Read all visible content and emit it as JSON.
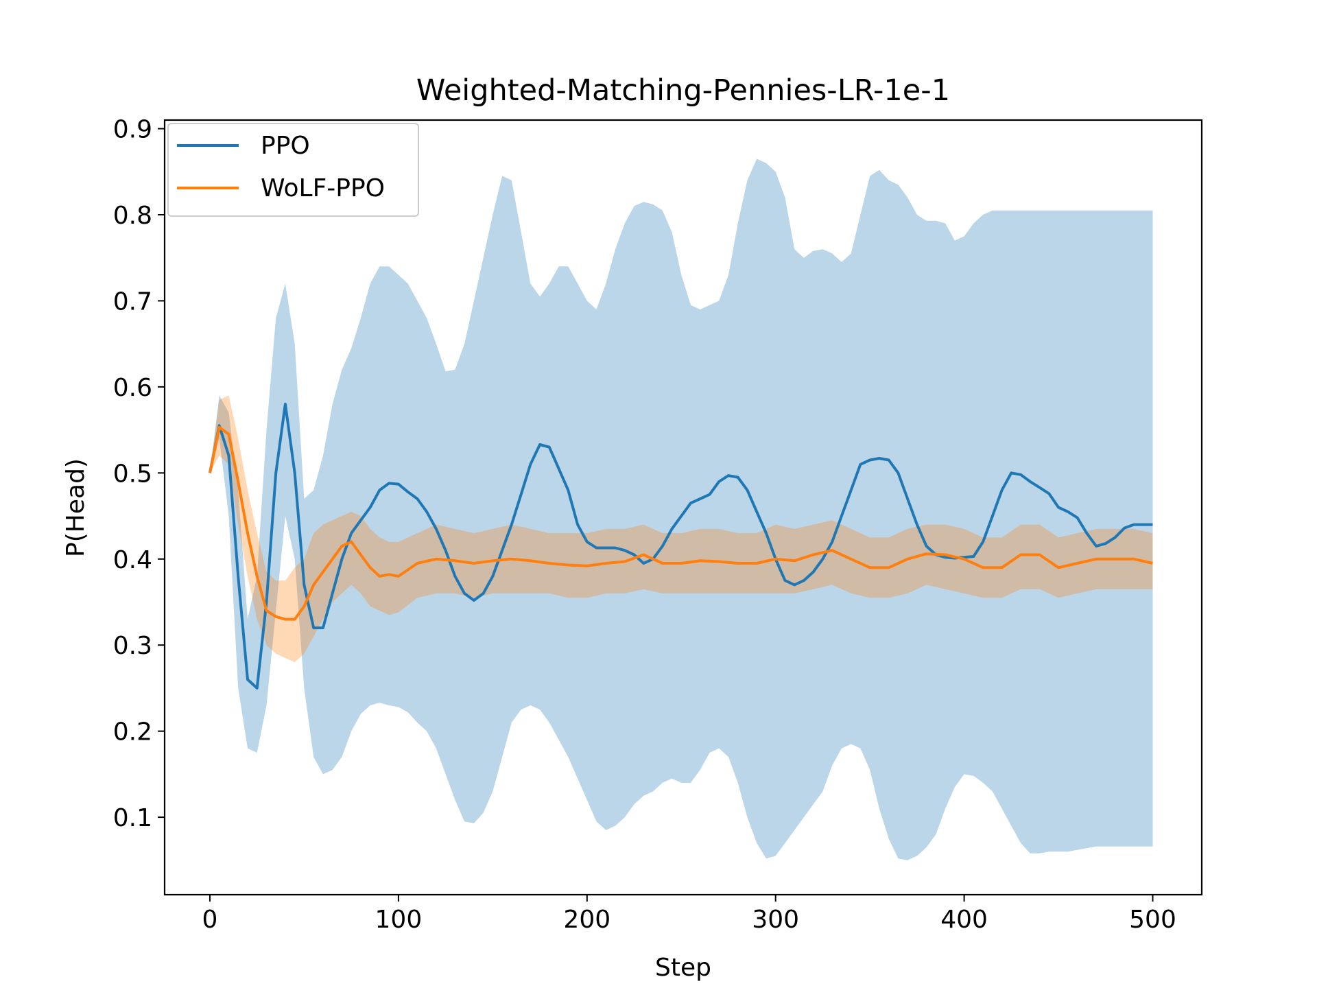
{
  "chart_data": {
    "type": "line",
    "title": "Weighted-Matching-Pennies-LR-1e-1",
    "xlabel": "Step",
    "ylabel": "P(Head)",
    "xlim": [
      -24,
      526
    ],
    "ylim": [
      0.01,
      0.91
    ],
    "x_ticks": [
      0,
      100,
      200,
      300,
      400,
      500
    ],
    "x_tick_labels": [
      "0",
      "100",
      "200",
      "300",
      "400",
      "500"
    ],
    "y_ticks": [
      0.1,
      0.2,
      0.3,
      0.4,
      0.5,
      0.6,
      0.7,
      0.8,
      0.9
    ],
    "y_tick_labels": [
      "0.1",
      "0.2",
      "0.3",
      "0.4",
      "0.5",
      "0.6",
      "0.7",
      "0.8",
      "0.9"
    ],
    "grid": false,
    "legend_position": "top-left",
    "series": [
      {
        "name": "PPO",
        "color": "#1f77b4",
        "band_color": "#1f77b4",
        "band_opacity": 0.3,
        "x": [
          0,
          5,
          10,
          15,
          20,
          25,
          30,
          35,
          40,
          45,
          50,
          55,
          60,
          65,
          70,
          75,
          80,
          85,
          90,
          95,
          100,
          105,
          110,
          115,
          120,
          125,
          130,
          135,
          140,
          145,
          150,
          155,
          160,
          165,
          170,
          175,
          180,
          185,
          190,
          195,
          200,
          205,
          210,
          215,
          220,
          225,
          230,
          235,
          240,
          245,
          250,
          255,
          260,
          265,
          270,
          275,
          280,
          285,
          290,
          295,
          300,
          305,
          310,
          315,
          320,
          325,
          330,
          335,
          340,
          345,
          350,
          355,
          360,
          365,
          370,
          375,
          380,
          385,
          390,
          395,
          400,
          405,
          410,
          415,
          420,
          425,
          430,
          435,
          440,
          445,
          450,
          455,
          460,
          465,
          470,
          475,
          480,
          485,
          490,
          495,
          500
        ],
        "mean": [
          0.5,
          0.555,
          0.52,
          0.38,
          0.26,
          0.25,
          0.35,
          0.5,
          0.58,
          0.5,
          0.37,
          0.32,
          0.32,
          0.36,
          0.4,
          0.43,
          0.445,
          0.46,
          0.48,
          0.488,
          0.487,
          0.478,
          0.47,
          0.455,
          0.435,
          0.41,
          0.38,
          0.36,
          0.352,
          0.36,
          0.38,
          0.41,
          0.44,
          0.475,
          0.51,
          0.533,
          0.53,
          0.505,
          0.48,
          0.44,
          0.42,
          0.413,
          0.413,
          0.413,
          0.41,
          0.405,
          0.395,
          0.4,
          0.415,
          0.435,
          0.45,
          0.465,
          0.47,
          0.475,
          0.49,
          0.497,
          0.495,
          0.48,
          0.455,
          0.43,
          0.4,
          0.375,
          0.37,
          0.375,
          0.385,
          0.4,
          0.42,
          0.45,
          0.48,
          0.51,
          0.515,
          0.517,
          0.515,
          0.5,
          0.47,
          0.44,
          0.415,
          0.405,
          0.402,
          0.401,
          0.402,
          0.403,
          0.42,
          0.45,
          0.48,
          0.5,
          0.498,
          0.49,
          0.483,
          0.476,
          0.46,
          0.455,
          0.448,
          0.43,
          0.415,
          0.418,
          0.425,
          0.436,
          0.44,
          0.44,
          0.44
        ],
        "lower": [
          0.5,
          0.54,
          0.45,
          0.25,
          0.18,
          0.175,
          0.23,
          0.34,
          0.45,
          0.4,
          0.25,
          0.17,
          0.15,
          0.155,
          0.17,
          0.2,
          0.22,
          0.23,
          0.233,
          0.23,
          0.228,
          0.222,
          0.21,
          0.2,
          0.18,
          0.15,
          0.12,
          0.095,
          0.093,
          0.105,
          0.13,
          0.17,
          0.21,
          0.225,
          0.23,
          0.225,
          0.21,
          0.19,
          0.17,
          0.145,
          0.12,
          0.095,
          0.085,
          0.09,
          0.1,
          0.115,
          0.125,
          0.13,
          0.14,
          0.145,
          0.14,
          0.14,
          0.155,
          0.175,
          0.18,
          0.17,
          0.14,
          0.1,
          0.07,
          0.052,
          0.055,
          0.07,
          0.085,
          0.1,
          0.115,
          0.13,
          0.16,
          0.18,
          0.185,
          0.18,
          0.155,
          0.11,
          0.075,
          0.052,
          0.05,
          0.055,
          0.065,
          0.08,
          0.11,
          0.135,
          0.15,
          0.148,
          0.14,
          0.13,
          0.11,
          0.09,
          0.07,
          0.058,
          0.058,
          0.06,
          0.06,
          0.06,
          0.062,
          0.064,
          0.066,
          0.066,
          0.066,
          0.066,
          0.066,
          0.066,
          0.066
        ],
        "upper": [
          0.5,
          0.59,
          0.57,
          0.48,
          0.33,
          0.38,
          0.55,
          0.68,
          0.72,
          0.65,
          0.47,
          0.48,
          0.52,
          0.58,
          0.62,
          0.645,
          0.68,
          0.72,
          0.74,
          0.74,
          0.73,
          0.72,
          0.7,
          0.68,
          0.65,
          0.618,
          0.62,
          0.65,
          0.7,
          0.75,
          0.8,
          0.845,
          0.84,
          0.78,
          0.72,
          0.705,
          0.72,
          0.74,
          0.74,
          0.72,
          0.7,
          0.69,
          0.72,
          0.76,
          0.79,
          0.81,
          0.815,
          0.812,
          0.805,
          0.78,
          0.73,
          0.695,
          0.69,
          0.695,
          0.7,
          0.73,
          0.79,
          0.84,
          0.865,
          0.86,
          0.85,
          0.82,
          0.76,
          0.75,
          0.758,
          0.76,
          0.755,
          0.745,
          0.755,
          0.8,
          0.845,
          0.852,
          0.84,
          0.835,
          0.82,
          0.8,
          0.793,
          0.793,
          0.79,
          0.77,
          0.775,
          0.79,
          0.8,
          0.805,
          0.805,
          0.805,
          0.805,
          0.805,
          0.805,
          0.805,
          0.805,
          0.805,
          0.805,
          0.805,
          0.805,
          0.805,
          0.805,
          0.805,
          0.805,
          0.805,
          0.805
        ]
      },
      {
        "name": "WoLF-PPO",
        "color": "#ff7f0e",
        "band_color": "#ff7f0e",
        "band_opacity": 0.3,
        "x": [
          0,
          5,
          10,
          15,
          20,
          25,
          30,
          35,
          40,
          45,
          50,
          55,
          60,
          65,
          70,
          75,
          80,
          85,
          90,
          95,
          100,
          110,
          120,
          130,
          140,
          150,
          160,
          170,
          180,
          190,
          200,
          210,
          220,
          230,
          240,
          250,
          260,
          270,
          280,
          290,
          300,
          310,
          320,
          330,
          340,
          350,
          360,
          370,
          380,
          390,
          400,
          410,
          420,
          430,
          440,
          450,
          460,
          470,
          480,
          490,
          500
        ],
        "mean": [
          0.5,
          0.553,
          0.545,
          0.49,
          0.43,
          0.38,
          0.34,
          0.333,
          0.33,
          0.33,
          0.345,
          0.37,
          0.385,
          0.4,
          0.415,
          0.42,
          0.405,
          0.39,
          0.38,
          0.382,
          0.38,
          0.395,
          0.4,
          0.398,
          0.395,
          0.398,
          0.4,
          0.398,
          0.395,
          0.393,
          0.392,
          0.395,
          0.397,
          0.405,
          0.395,
          0.395,
          0.398,
          0.397,
          0.395,
          0.395,
          0.4,
          0.398,
          0.405,
          0.41,
          0.4,
          0.39,
          0.39,
          0.4,
          0.406,
          0.405,
          0.4,
          0.39,
          0.39,
          0.405,
          0.405,
          0.39,
          0.395,
          0.4,
          0.4,
          0.4,
          0.395
        ],
        "lower": [
          0.5,
          0.52,
          0.51,
          0.44,
          0.38,
          0.33,
          0.3,
          0.29,
          0.285,
          0.28,
          0.29,
          0.31,
          0.33,
          0.35,
          0.36,
          0.37,
          0.36,
          0.345,
          0.34,
          0.335,
          0.338,
          0.355,
          0.36,
          0.36,
          0.355,
          0.36,
          0.36,
          0.36,
          0.36,
          0.355,
          0.355,
          0.36,
          0.36,
          0.365,
          0.36,
          0.36,
          0.36,
          0.36,
          0.36,
          0.36,
          0.36,
          0.36,
          0.365,
          0.37,
          0.36,
          0.355,
          0.355,
          0.36,
          0.37,
          0.365,
          0.36,
          0.355,
          0.355,
          0.365,
          0.365,
          0.355,
          0.36,
          0.365,
          0.365,
          0.365,
          0.365
        ],
        "upper": [
          0.5,
          0.585,
          0.59,
          0.54,
          0.48,
          0.43,
          0.385,
          0.375,
          0.375,
          0.39,
          0.4,
          0.43,
          0.44,
          0.445,
          0.45,
          0.455,
          0.45,
          0.435,
          0.425,
          0.42,
          0.42,
          0.43,
          0.44,
          0.435,
          0.43,
          0.435,
          0.44,
          0.435,
          0.43,
          0.43,
          0.43,
          0.435,
          0.435,
          0.44,
          0.43,
          0.43,
          0.435,
          0.435,
          0.43,
          0.43,
          0.44,
          0.435,
          0.44,
          0.445,
          0.435,
          0.425,
          0.425,
          0.435,
          0.44,
          0.44,
          0.435,
          0.425,
          0.425,
          0.44,
          0.44,
          0.425,
          0.43,
          0.435,
          0.435,
          0.435,
          0.43
        ]
      }
    ]
  }
}
